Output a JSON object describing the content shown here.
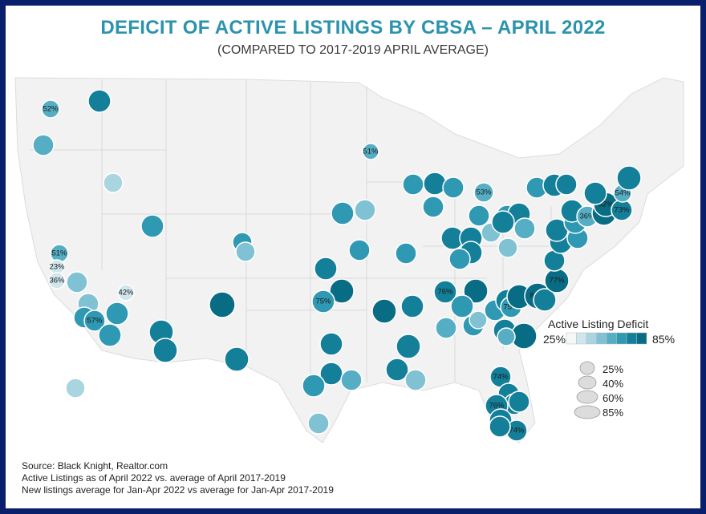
{
  "title": "DEFICIT OF ACTIVE LISTINGS BY CBSA – APRIL 2022",
  "subtitle": "(COMPARED TO 2017-2019 APRIL AVERAGE)",
  "legend": {
    "color_title": "Active Listing Deficit",
    "color_low": "25%",
    "color_high": "85%",
    "color_ramp": [
      "#f4f8f9",
      "#cfe6ec",
      "#a9d5e0",
      "#80c2d3",
      "#56aec4",
      "#2f98b2",
      "#147f99",
      "#086c84"
    ],
    "sizes": [
      "25%",
      "40%",
      "60%",
      "85%"
    ]
  },
  "source": {
    "line1": "Source: Black Knight, Realtor.com",
    "line2": "Active Listings as of April 2022 vs. average of April 2017-2019",
    "line3": "New listings average for Jan-Apr 2022 vs average for Jan-Apr 2017-2019"
  },
  "colors": {
    "frame": "#0a1f6b",
    "title": "#2b93ad",
    "land": "#f2f2f2",
    "border": "#d4d4d4"
  },
  "bubble_labels": [
    "52%",
    "51%",
    "53%",
    "54%",
    "82%",
    "73%",
    "36%",
    "51%",
    "23%",
    "36%",
    "42%",
    "57%",
    "75%",
    "76%",
    "75%",
    "83%",
    "77%",
    "74%",
    "76%",
    "74%"
  ]
}
